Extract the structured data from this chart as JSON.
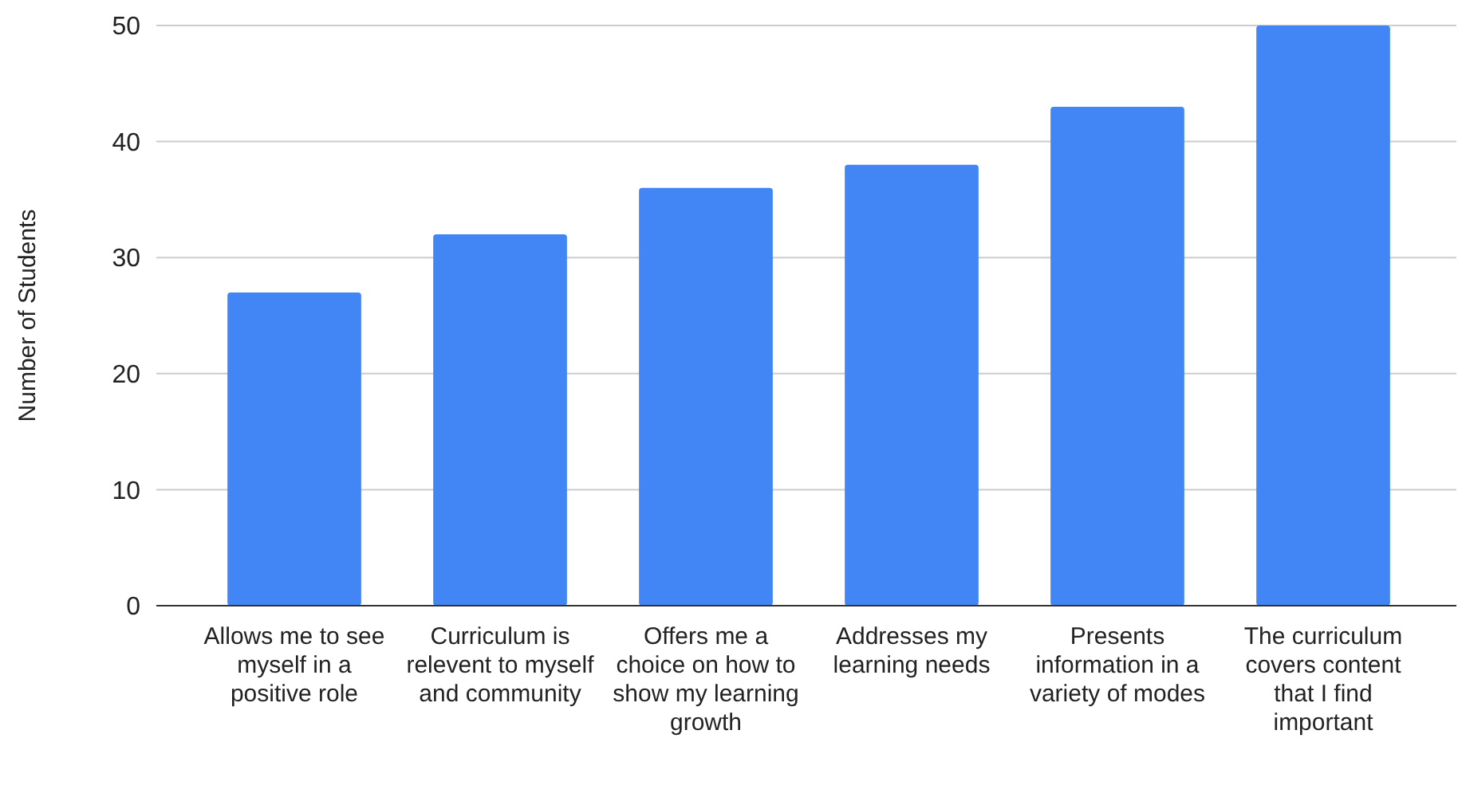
{
  "chart_data": {
    "type": "bar",
    "ylabel": "Number of Students",
    "categories": [
      "Allows me to see myself in a positive role",
      "Curriculum is relevent to myself and community",
      "Offers me a choice on how to show my learning growth",
      "Addresses my learning needs",
      "Presents information in a variety of modes",
      "The curriculum covers content that I find important"
    ],
    "values": [
      27,
      32,
      36,
      38,
      43,
      50
    ],
    "color": "#4285f4",
    "ylim": [
      0,
      50
    ],
    "yticks": [
      0,
      10,
      20,
      30,
      40,
      50
    ],
    "grid": true
  }
}
